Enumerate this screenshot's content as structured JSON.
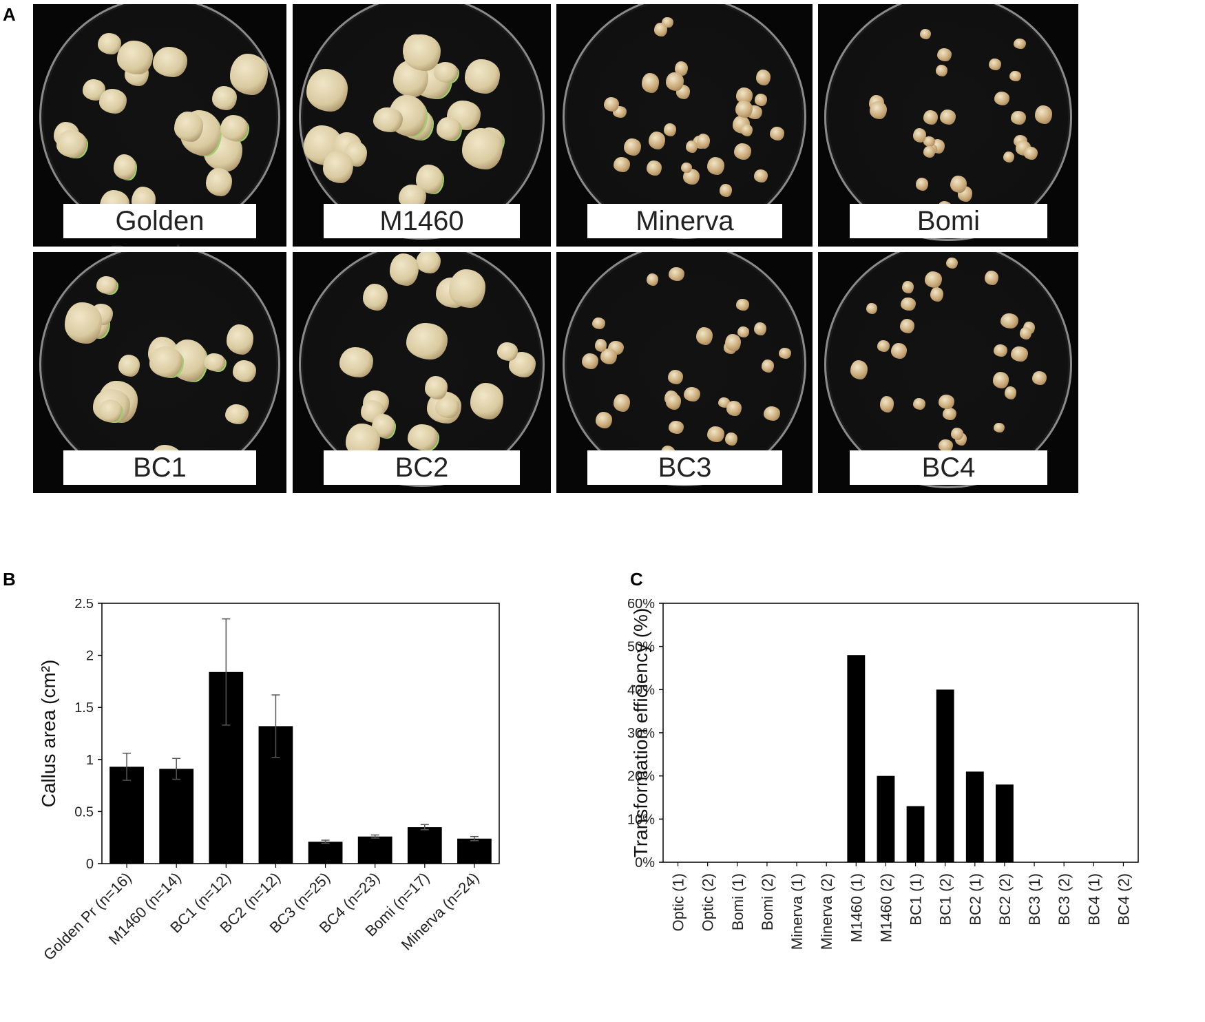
{
  "panels": {
    "a": "A",
    "b": "B",
    "c": "C"
  },
  "photos": [
    {
      "label": "Golden Promise",
      "n": 18,
      "big": true
    },
    {
      "label": "M1460",
      "n": 20,
      "big": true
    },
    {
      "label": "Minerva",
      "n": 30,
      "big": false
    },
    {
      "label": "Bomi",
      "n": 26,
      "big": false
    },
    {
      "label": "BC1",
      "n": 16,
      "big": true
    },
    {
      "label": "BC2",
      "n": 18,
      "big": true
    },
    {
      "label": "BC3",
      "n": 28,
      "big": false
    },
    {
      "label": "BC4",
      "n": 28,
      "big": false
    }
  ],
  "colors": {
    "bar": "#000000",
    "callus_big": "#d9caa0",
    "callus_small": "#c9a877",
    "callus_green": "#9fcf6a"
  },
  "chart_data": [
    {
      "type": "bar",
      "panel": "B",
      "ylabel": "Callus area (cm²)",
      "categories": [
        "Golden Pr (n=16)",
        "M1460 (n=14)",
        "BC1 (n=12)",
        "BC2 (n=12)",
        "BC3 (n=25)",
        "BC4 (n=23)",
        "Bomi (n=17)",
        "Minerva (n=24)"
      ],
      "values": [
        0.93,
        0.91,
        1.84,
        1.32,
        0.21,
        0.26,
        0.35,
        0.24
      ],
      "errors": [
        0.13,
        0.1,
        0.51,
        0.3,
        0.015,
        0.015,
        0.025,
        0.02
      ],
      "ylim": [
        0,
        2.5
      ],
      "yticks": [
        "0",
        "0.5",
        "1",
        "1.5",
        "2",
        "2.5"
      ],
      "grid": false
    },
    {
      "type": "bar",
      "panel": "C",
      "ylabel": "Transformation efficiency (%)",
      "categories": [
        "Optic (1)",
        "Optic (2)",
        "Bomi (1)",
        "Bomi (2)",
        "Minerva (1)",
        "Minerva (2)",
        "M1460 (1)",
        "M1460 (2)",
        "BC1 (1)",
        "BC1 (2)",
        "BC2 (1)",
        "BC2 (2)",
        "BC3 (1)",
        "BC3 (2)",
        "BC4 (1)",
        "BC4 (2)"
      ],
      "values": [
        0,
        0,
        0,
        0,
        0,
        0,
        48,
        20,
        13,
        40,
        21,
        18,
        0,
        0,
        0,
        0
      ],
      "ylim": [
        0,
        60
      ],
      "yticks": [
        "0%",
        "10%",
        "20%",
        "30%",
        "40%",
        "50%",
        "60%"
      ],
      "grid": false
    }
  ]
}
